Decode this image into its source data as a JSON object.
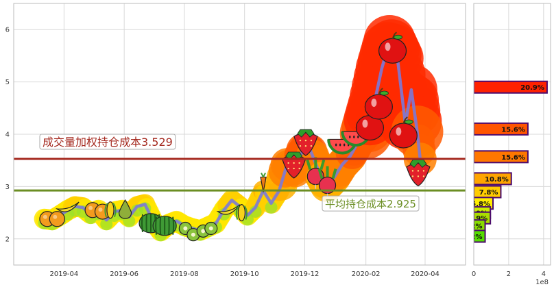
{
  "chart_data": [
    {
      "type": "line",
      "x_ticks": [
        "2019-04",
        "2019-06",
        "2019-08",
        "2019-10",
        "2019-12",
        "2020-02",
        "2020-04"
      ],
      "y_ticks": [
        2,
        3,
        4,
        5,
        6
      ],
      "ylim": [
        1.5,
        6.5
      ],
      "grid": true,
      "series": [
        {
          "values": [
            {
              "x": "2019-03-12",
              "y": 2.38
            },
            {
              "x": "2019-03-20",
              "y": 2.36
            },
            {
              "x": "2019-03-28",
              "y": 2.45
            },
            {
              "x": "2019-04-05",
              "y": 2.55
            },
            {
              "x": "2019-04-12",
              "y": 2.62
            },
            {
              "x": "2019-04-20",
              "y": 2.6
            },
            {
              "x": "2019-04-28",
              "y": 2.48
            },
            {
              "x": "2019-05-06",
              "y": 2.55
            },
            {
              "x": "2019-05-14",
              "y": 2.36
            },
            {
              "x": "2019-05-22",
              "y": 2.52
            },
            {
              "x": "2019-05-30",
              "y": 2.55
            },
            {
              "x": "2019-06-06",
              "y": 2.42
            },
            {
              "x": "2019-06-14",
              "y": 2.62
            },
            {
              "x": "2019-06-22",
              "y": 2.66
            },
            {
              "x": "2019-06-30",
              "y": 2.35
            },
            {
              "x": "2019-07-08",
              "y": 2.15
            },
            {
              "x": "2019-07-16",
              "y": 2.28
            },
            {
              "x": "2019-07-24",
              "y": 2.34
            },
            {
              "x": "2019-08-01",
              "y": 2.25
            },
            {
              "x": "2019-08-09",
              "y": 2.2
            },
            {
              "x": "2019-08-17",
              "y": 2.16
            },
            {
              "x": "2019-08-25",
              "y": 2.23
            },
            {
              "x": "2019-09-02",
              "y": 2.3
            },
            {
              "x": "2019-09-10",
              "y": 2.55
            },
            {
              "x": "2019-09-18",
              "y": 2.74
            },
            {
              "x": "2019-09-26",
              "y": 2.62
            },
            {
              "x": "2019-10-04",
              "y": 2.45
            },
            {
              "x": "2019-10-12",
              "y": 2.6
            },
            {
              "x": "2019-10-20",
              "y": 2.92
            },
            {
              "x": "2019-10-28",
              "y": 2.68
            },
            {
              "x": "2019-11-05",
              "y": 2.92
            },
            {
              "x": "2019-11-13",
              "y": 3.42
            },
            {
              "x": "2019-11-21",
              "y": 3.3
            },
            {
              "x": "2019-11-29",
              "y": 3.7
            },
            {
              "x": "2019-12-07",
              "y": 3.68
            },
            {
              "x": "2019-12-15",
              "y": 3.3
            },
            {
              "x": "2019-12-23",
              "y": 3.02
            },
            {
              "x": "2019-12-31",
              "y": 3.18
            },
            {
              "x": "2020-01-08",
              "y": 3.42
            },
            {
              "x": "2020-01-16",
              "y": 3.58
            },
            {
              "x": "2020-01-24",
              "y": 3.85
            },
            {
              "x": "2020-02-01",
              "y": 4.02
            },
            {
              "x": "2020-02-09",
              "y": 4.55
            },
            {
              "x": "2020-02-17",
              "y": 5.25
            },
            {
              "x": "2020-02-25",
              "y": 5.78
            },
            {
              "x": "2020-03-04",
              "y": 5.45
            },
            {
              "x": "2020-03-12",
              "y": 4.2
            },
            {
              "x": "2020-03-18",
              "y": 4.85
            },
            {
              "x": "2020-03-24",
              "y": 4.05
            },
            {
              "x": "2020-03-28",
              "y": 3.35
            }
          ]
        }
      ],
      "fruit_markers": [
        {
          "date": "2019-03-15",
          "price": 2.38,
          "icon": "orange-icon"
        },
        {
          "date": "2019-03-25",
          "price": 2.38,
          "icon": "orange-icon"
        },
        {
          "date": "2019-04-05",
          "price": 2.6,
          "icon": "banana-icon"
        },
        {
          "date": "2019-04-30",
          "price": 2.55,
          "icon": "orange-icon"
        },
        {
          "date": "2019-05-10",
          "price": 2.52,
          "icon": "orange-icon"
        },
        {
          "date": "2019-05-18",
          "price": 2.55,
          "icon": "corn-icon"
        },
        {
          "date": "2019-06-02",
          "price": 2.56,
          "icon": "pear-icon"
        },
        {
          "date": "2019-06-28",
          "price": 2.3,
          "icon": "watermelon-icon"
        },
        {
          "date": "2019-07-12",
          "price": 2.25,
          "icon": "watermelon-icon"
        },
        {
          "date": "2019-08-02",
          "price": 2.2,
          "icon": "kiwi-icon"
        },
        {
          "date": "2019-08-10",
          "price": 2.08,
          "icon": "kiwi-icon"
        },
        {
          "date": "2019-08-20",
          "price": 2.15,
          "icon": "kiwi-icon"
        },
        {
          "date": "2019-08-28",
          "price": 2.2,
          "icon": "kiwi-icon"
        },
        {
          "date": "2019-09-15",
          "price": 2.55,
          "icon": "banana-icon"
        },
        {
          "date": "2019-09-28",
          "price": 2.5,
          "icon": "corn-icon"
        },
        {
          "date": "2019-10-20",
          "price": 3.05,
          "icon": "carrot-icon"
        },
        {
          "date": "2019-11-20",
          "price": 3.45,
          "icon": "strawberry-icon"
        },
        {
          "date": "2019-12-02",
          "price": 3.88,
          "icon": "strawberry-icon"
        },
        {
          "date": "2019-12-12",
          "price": 3.22,
          "icon": "radish-icon"
        },
        {
          "date": "2019-12-24",
          "price": 3.05,
          "icon": "radish-icon"
        },
        {
          "date": "2020-01-08",
          "price": 3.85,
          "icon": "watermelon-slice-icon"
        },
        {
          "date": "2020-01-22",
          "price": 4.0,
          "icon": "watermelon-slice-icon"
        },
        {
          "date": "2020-02-05",
          "price": 4.15,
          "icon": "apple-icon"
        },
        {
          "date": "2020-02-14",
          "price": 4.55,
          "icon": "apple-icon"
        },
        {
          "date": "2020-02-28",
          "price": 5.62,
          "icon": "apple-icon"
        },
        {
          "date": "2020-03-10",
          "price": 4.0,
          "icon": "apple-icon"
        },
        {
          "date": "2020-03-25",
          "price": 3.3,
          "icon": "strawberry-icon"
        }
      ],
      "hlines": [
        {
          "label": "成交量加权持仓成本3.529",
          "value": 3.529,
          "color": "#a52a20"
        },
        {
          "label": "平均持仓成本2.925",
          "value": 2.925,
          "color": "#6b8e23"
        }
      ]
    },
    {
      "type": "bar",
      "orientation": "horizontal",
      "x_ticks": [
        "0",
        "2",
        "4"
      ],
      "x_offset_label": "1e8",
      "bars": [
        {
          "price": 4.9,
          "value": 4.2,
          "label": "20.9%",
          "color": "#ff2200"
        },
        {
          "price": 4.1,
          "value": 3.1,
          "label": "15.6%",
          "color": "#ff5500"
        },
        {
          "price": 3.57,
          "value": 3.1,
          "label": "15.6%",
          "color": "#ff7700"
        },
        {
          "price": 3.15,
          "value": 2.15,
          "label": "10.8%",
          "color": "#ffa500"
        },
        {
          "price": 2.9,
          "value": 1.55,
          "label": "7.8%",
          "color": "#ffcc00"
        },
        {
          "price": 2.68,
          "value": 1.1,
          "label": "5.8%",
          "color": "#ffee00"
        },
        {
          "price": 2.5,
          "value": 0.95,
          "label": "4.9%",
          "color": "#ccee00"
        },
        {
          "price": 2.4,
          "value": 0.95,
          "label": "4.9%",
          "color": "#aadd00"
        },
        {
          "price": 2.25,
          "value": 0.65,
          "label": "3.2%",
          "color": "#88dd00"
        },
        {
          "price": 2.05,
          "value": 0.65,
          "label": "3.2%",
          "color": "#55dd00"
        }
      ]
    }
  ]
}
